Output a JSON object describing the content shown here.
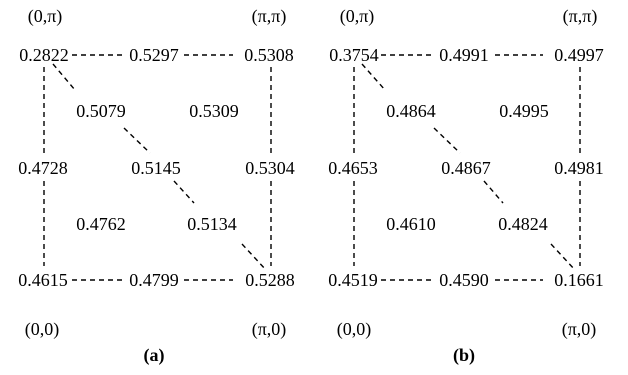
{
  "panels": [
    {
      "caption": "(a)",
      "corners": {
        "top_left": "(0,π)",
        "top_right": "(π,π)",
        "bottom_left": "(0,0)",
        "bottom_right": "(π,0)"
      },
      "values": {
        "top_left": "0.2822",
        "top_mid": "0.5297",
        "top_right": "0.5308",
        "upper_left_center": "0.5079",
        "upper_right_center": "0.5309",
        "mid_left": "0.4728",
        "center": "0.5145",
        "mid_right": "0.5304",
        "lower_left_center": "0.4762",
        "lower_right_center": "0.5134",
        "bottom_left": "0.4615",
        "bottom_mid": "0.4799",
        "bottom_right": "0.5288"
      }
    },
    {
      "caption": "(b)",
      "corners": {
        "top_left": "(0,π)",
        "top_right": "(π,π)",
        "bottom_left": "(0,0)",
        "bottom_right": "(π,0)"
      },
      "values": {
        "top_left": "0.3754",
        "top_mid": "0.4991",
        "top_right": "0.4997",
        "upper_left_center": "0.4864",
        "upper_right_center": "0.4995",
        "mid_left": "0.4653",
        "center": "0.4867",
        "mid_right": "0.4981",
        "lower_left_center": "0.4610",
        "lower_right_center": "0.4824",
        "bottom_left": "0.4519",
        "bottom_mid": "0.4590",
        "bottom_right": "0.1661"
      }
    }
  ]
}
